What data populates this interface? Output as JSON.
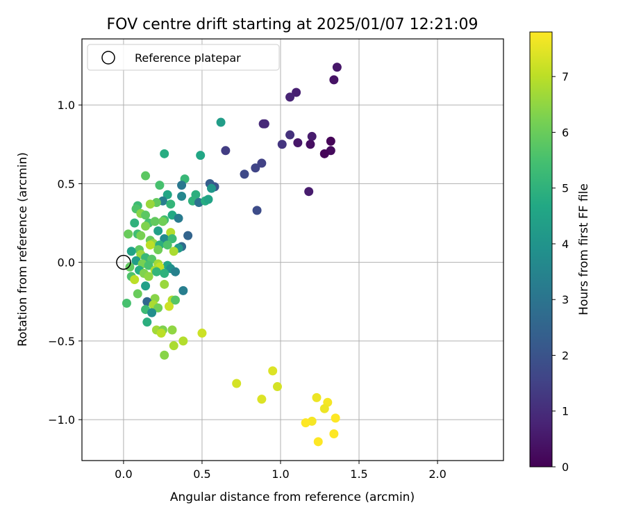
{
  "chart_data": {
    "type": "scatter",
    "title": "FOV centre drift starting at 2025/01/07 12:21:09",
    "xlabel": "Angular distance from reference (arcmin)",
    "ylabel": "Rotation from reference (arcmin)",
    "xlim": [
      -0.265,
      2.42
    ],
    "ylim": [
      -1.26,
      1.42
    ],
    "xticks": [
      0.0,
      0.5,
      1.0,
      1.5,
      2.0
    ],
    "yticks": [
      -1.0,
      -0.5,
      0.0,
      0.5,
      1.0
    ],
    "xtick_labels": [
      "0.0",
      "0.5",
      "1.0",
      "1.5",
      "2.0"
    ],
    "ytick_labels": [
      "−1.0",
      "−0.5",
      "0.0",
      "0.5",
      "1.0"
    ],
    "grid": true,
    "legend": {
      "position": "top-left",
      "label": "Reference platepar"
    },
    "reference_point": {
      "x": 0.0,
      "y": 0.0
    },
    "colorbar": {
      "label": "Hours from first FF file",
      "colormap": "viridis",
      "range": [
        0,
        7.8
      ],
      "ticks": [
        0,
        1,
        2,
        3,
        4,
        5,
        6,
        7
      ],
      "tick_labels": [
        "0",
        "1",
        "2",
        "3",
        "4",
        "5",
        "6",
        "7"
      ]
    },
    "points": [
      {
        "x": 1.36,
        "y": 1.24,
        "h": 0.5
      },
      {
        "x": 1.34,
        "y": 1.16,
        "h": 0.4
      },
      {
        "x": 1.1,
        "y": 1.08,
        "h": 0.7
      },
      {
        "x": 1.06,
        "y": 1.05,
        "h": 0.8
      },
      {
        "x": 0.9,
        "y": 0.88,
        "h": 0.9
      },
      {
        "x": 0.89,
        "y": 0.88,
        "h": 0.9
      },
      {
        "x": 1.06,
        "y": 0.81,
        "h": 1.1
      },
      {
        "x": 1.2,
        "y": 0.8,
        "h": 0.6
      },
      {
        "x": 1.32,
        "y": 0.77,
        "h": 0.1
      },
      {
        "x": 1.11,
        "y": 0.76,
        "h": 0.5
      },
      {
        "x": 1.01,
        "y": 0.75,
        "h": 1.2
      },
      {
        "x": 1.19,
        "y": 0.75,
        "h": 0.3
      },
      {
        "x": 1.32,
        "y": 0.71,
        "h": 0.2
      },
      {
        "x": 1.28,
        "y": 0.69,
        "h": 0.1
      },
      {
        "x": 0.65,
        "y": 0.71,
        "h": 1.4
      },
      {
        "x": 0.88,
        "y": 0.63,
        "h": 1.5
      },
      {
        "x": 0.84,
        "y": 0.6,
        "h": 1.6
      },
      {
        "x": 0.77,
        "y": 0.56,
        "h": 1.7
      },
      {
        "x": 1.18,
        "y": 0.45,
        "h": 0.6
      },
      {
        "x": 0.85,
        "y": 0.33,
        "h": 1.8
      },
      {
        "x": 0.62,
        "y": 0.89,
        "h": 4.3
      },
      {
        "x": 0.26,
        "y": 0.69,
        "h": 4.8
      },
      {
        "x": 0.49,
        "y": 0.68,
        "h": 4.6
      },
      {
        "x": 0.39,
        "y": 0.53,
        "h": 5.2
      },
      {
        "x": 0.14,
        "y": 0.55,
        "h": 5.8
      },
      {
        "x": 0.23,
        "y": 0.49,
        "h": 5.5
      },
      {
        "x": 0.37,
        "y": 0.49,
        "h": 3.1
      },
      {
        "x": 0.55,
        "y": 0.5,
        "h": 2.3
      },
      {
        "x": 0.58,
        "y": 0.48,
        "h": 2.1
      },
      {
        "x": 0.56,
        "y": 0.47,
        "h": 4.1
      },
      {
        "x": 0.28,
        "y": 0.43,
        "h": 4.6
      },
      {
        "x": 0.46,
        "y": 0.43,
        "h": 4.9
      },
      {
        "x": 0.37,
        "y": 0.42,
        "h": 3.6
      },
      {
        "x": 0.44,
        "y": 0.39,
        "h": 5.0
      },
      {
        "x": 0.48,
        "y": 0.38,
        "h": 2.9
      },
      {
        "x": 0.52,
        "y": 0.39,
        "h": 4.8
      },
      {
        "x": 0.54,
        "y": 0.4,
        "h": 4.5
      },
      {
        "x": 0.25,
        "y": 0.39,
        "h": 3.3
      },
      {
        "x": 0.21,
        "y": 0.38,
        "h": 5.9
      },
      {
        "x": 0.17,
        "y": 0.37,
        "h": 6.6
      },
      {
        "x": 0.3,
        "y": 0.37,
        "h": 5.1
      },
      {
        "x": 0.09,
        "y": 0.36,
        "h": 5.3
      },
      {
        "x": 0.08,
        "y": 0.34,
        "h": 5.6
      },
      {
        "x": 0.11,
        "y": 0.31,
        "h": 6.4
      },
      {
        "x": 0.14,
        "y": 0.3,
        "h": 5.8
      },
      {
        "x": 0.31,
        "y": 0.3,
        "h": 4.7
      },
      {
        "x": 0.35,
        "y": 0.28,
        "h": 3.2
      },
      {
        "x": 0.26,
        "y": 0.27,
        "h": 5.4
      },
      {
        "x": 0.25,
        "y": 0.26,
        "h": 6.1
      },
      {
        "x": 0.07,
        "y": 0.25,
        "h": 5.0
      },
      {
        "x": 0.16,
        "y": 0.25,
        "h": 5.5
      },
      {
        "x": 0.2,
        "y": 0.26,
        "h": 5.9
      },
      {
        "x": 0.14,
        "y": 0.23,
        "h": 6.3
      },
      {
        "x": 0.22,
        "y": 0.2,
        "h": 4.4
      },
      {
        "x": 0.3,
        "y": 0.19,
        "h": 6.9
      },
      {
        "x": 0.03,
        "y": 0.18,
        "h": 6.0
      },
      {
        "x": 0.09,
        "y": 0.18,
        "h": 5.4
      },
      {
        "x": 0.11,
        "y": 0.17,
        "h": 6.2
      },
      {
        "x": 0.41,
        "y": 0.17,
        "h": 2.5
      },
      {
        "x": 0.26,
        "y": 0.15,
        "h": 3.7
      },
      {
        "x": 0.31,
        "y": 0.15,
        "h": 5.3
      },
      {
        "x": 0.17,
        "y": 0.14,
        "h": 6.0
      },
      {
        "x": 0.19,
        "y": 0.12,
        "h": 6.5
      },
      {
        "x": 0.17,
        "y": 0.11,
        "h": 7.0
      },
      {
        "x": 0.23,
        "y": 0.11,
        "h": 4.9
      },
      {
        "x": 0.28,
        "y": 0.11,
        "h": 5.6
      },
      {
        "x": 0.37,
        "y": 0.1,
        "h": 2.7
      },
      {
        "x": 0.35,
        "y": 0.09,
        "h": 4.2
      },
      {
        "x": 0.22,
        "y": 0.08,
        "h": 6.1
      },
      {
        "x": 0.1,
        "y": 0.08,
        "h": 5.8
      },
      {
        "x": 0.05,
        "y": 0.07,
        "h": 4.5
      },
      {
        "x": 0.32,
        "y": 0.07,
        "h": 6.8
      },
      {
        "x": 0.11,
        "y": 0.05,
        "h": 6.6
      },
      {
        "x": 0.14,
        "y": 0.03,
        "h": 5.2
      },
      {
        "x": 0.18,
        "y": 0.02,
        "h": 5.7
      },
      {
        "x": 0.08,
        "y": 0.01,
        "h": 4.3
      },
      {
        "x": 0.12,
        "y": -0.01,
        "h": 6.2
      },
      {
        "x": 0.22,
        "y": -0.01,
        "h": 6.7
      },
      {
        "x": 0.28,
        "y": -0.02,
        "h": 4.6
      },
      {
        "x": 0.16,
        "y": -0.02,
        "h": 5.5
      },
      {
        "x": 0.23,
        "y": -0.03,
        "h": 7.1
      },
      {
        "x": 0.3,
        "y": -0.04,
        "h": 3.9
      },
      {
        "x": 0.04,
        "y": -0.03,
        "h": 5.9
      },
      {
        "x": 0.2,
        "y": -0.05,
        "h": 6.8
      },
      {
        "x": 0.1,
        "y": -0.05,
        "h": 4.8
      },
      {
        "x": 0.33,
        "y": -0.06,
        "h": 3.4
      },
      {
        "x": 0.21,
        "y": -0.06,
        "h": 5.1
      },
      {
        "x": 0.13,
        "y": -0.07,
        "h": 6.3
      },
      {
        "x": 0.26,
        "y": -0.07,
        "h": 5.0
      },
      {
        "x": 0.05,
        "y": -0.09,
        "h": 5.6
      },
      {
        "x": 0.16,
        "y": -0.09,
        "h": 6.5
      },
      {
        "x": 0.07,
        "y": -0.11,
        "h": 7.0
      },
      {
        "x": 0.14,
        "y": -0.15,
        "h": 4.4
      },
      {
        "x": 0.26,
        "y": -0.14,
        "h": 6.6
      },
      {
        "x": 0.38,
        "y": -0.18,
        "h": 3.3
      },
      {
        "x": 0.09,
        "y": -0.2,
        "h": 6.0
      },
      {
        "x": 0.2,
        "y": -0.23,
        "h": 6.4
      },
      {
        "x": 0.31,
        "y": -0.24,
        "h": 6.9
      },
      {
        "x": 0.33,
        "y": -0.24,
        "h": 5.7
      },
      {
        "x": 0.15,
        "y": -0.25,
        "h": 2.6
      },
      {
        "x": 0.02,
        "y": -0.26,
        "h": 5.5
      },
      {
        "x": 0.19,
        "y": -0.27,
        "h": 6.8
      },
      {
        "x": 0.29,
        "y": -0.28,
        "h": 7.2
      },
      {
        "x": 0.22,
        "y": -0.29,
        "h": 6.1
      },
      {
        "x": 0.14,
        "y": -0.3,
        "h": 5.3
      },
      {
        "x": 0.18,
        "y": -0.32,
        "h": 3.8
      },
      {
        "x": 0.15,
        "y": -0.38,
        "h": 4.9
      },
      {
        "x": 0.21,
        "y": -0.43,
        "h": 6.7
      },
      {
        "x": 0.25,
        "y": -0.43,
        "h": 6.3
      },
      {
        "x": 0.31,
        "y": -0.43,
        "h": 6.5
      },
      {
        "x": 0.24,
        "y": -0.45,
        "h": 7.0
      },
      {
        "x": 0.38,
        "y": -0.5,
        "h": 6.9
      },
      {
        "x": 0.32,
        "y": -0.53,
        "h": 6.8
      },
      {
        "x": 0.26,
        "y": -0.59,
        "h": 6.4
      },
      {
        "x": 0.5,
        "y": -0.45,
        "h": 7.2
      },
      {
        "x": 0.95,
        "y": -0.69,
        "h": 7.4
      },
      {
        "x": 0.72,
        "y": -0.77,
        "h": 7.3
      },
      {
        "x": 0.98,
        "y": -0.79,
        "h": 7.3
      },
      {
        "x": 0.88,
        "y": -0.87,
        "h": 7.4
      },
      {
        "x": 1.23,
        "y": -0.86,
        "h": 7.6
      },
      {
        "x": 1.3,
        "y": -0.89,
        "h": 7.7
      },
      {
        "x": 1.28,
        "y": -0.93,
        "h": 7.6
      },
      {
        "x": 1.35,
        "y": -0.99,
        "h": 7.8
      },
      {
        "x": 1.2,
        "y": -1.01,
        "h": 7.7
      },
      {
        "x": 1.16,
        "y": -1.02,
        "h": 7.8
      },
      {
        "x": 1.34,
        "y": -1.09,
        "h": 7.8
      },
      {
        "x": 1.24,
        "y": -1.14,
        "h": 7.8
      }
    ]
  }
}
